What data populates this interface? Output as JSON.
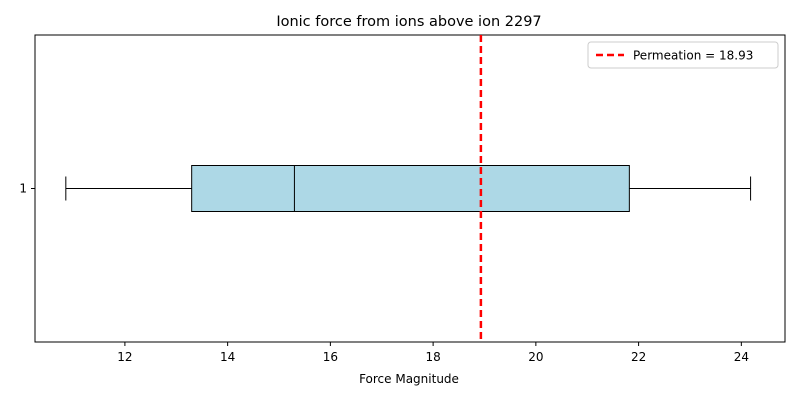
{
  "chart_data": {
    "type": "boxplot",
    "orientation": "horizontal",
    "title": "Ionic force from ions above ion 2297",
    "xlabel": "Force Magnitude",
    "ylabel": "",
    "xlim": [
      10.25,
      24.85
    ],
    "xticks": [
      12,
      14,
      16,
      18,
      20,
      22,
      24
    ],
    "xtick_labels": [
      "12",
      "14",
      "16",
      "18",
      "20",
      "22",
      "24"
    ],
    "yticks": [
      "1"
    ],
    "grid": false,
    "legend_position": "top-right",
    "boxes": [
      {
        "label": "1",
        "whisker_low": 10.85,
        "q1": 13.3,
        "median": 15.3,
        "q3": 21.82,
        "whisker_high": 24.18,
        "fill_color": "#add8e6",
        "edge_color": "#000000"
      }
    ],
    "reference_line": {
      "value": 18.93,
      "label": "Permeation = 18.93",
      "color": "#ff0000",
      "style": "dashed"
    }
  }
}
